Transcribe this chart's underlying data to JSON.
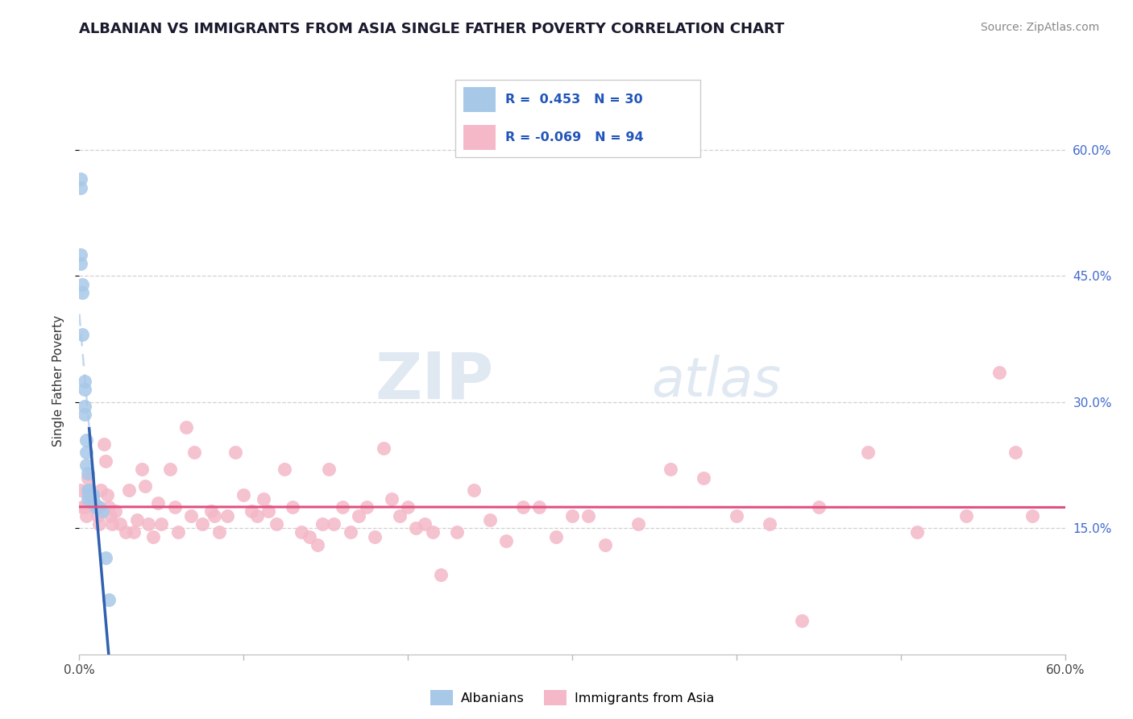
{
  "title": "ALBANIAN VS IMMIGRANTS FROM ASIA SINGLE FATHER POVERTY CORRELATION CHART",
  "source": "Source: ZipAtlas.com",
  "ylabel": "Single Father Poverty",
  "legend_label1": "Albanians",
  "legend_label2": "Immigrants from Asia",
  "color_blue": "#a8c8e8",
  "color_pink": "#f4b8c8",
  "line_blue": "#3060b0",
  "line_pink": "#e05080",
  "watermark_zip": "ZIP",
  "watermark_atlas": "atlas",
  "xlim": [
    0.0,
    0.6
  ],
  "ylim": [
    0.0,
    0.65
  ],
  "albanians_x": [
    0.001,
    0.001,
    0.001,
    0.001,
    0.002,
    0.002,
    0.002,
    0.003,
    0.003,
    0.003,
    0.003,
    0.004,
    0.004,
    0.004,
    0.005,
    0.005,
    0.005,
    0.006,
    0.006,
    0.007,
    0.007,
    0.008,
    0.008,
    0.009,
    0.01,
    0.011,
    0.012,
    0.014,
    0.016,
    0.018
  ],
  "albanians_y": [
    0.565,
    0.555,
    0.475,
    0.465,
    0.44,
    0.43,
    0.38,
    0.325,
    0.315,
    0.295,
    0.285,
    0.255,
    0.24,
    0.225,
    0.215,
    0.195,
    0.185,
    0.195,
    0.19,
    0.19,
    0.185,
    0.19,
    0.19,
    0.18,
    0.175,
    0.175,
    0.175,
    0.17,
    0.115,
    0.065
  ],
  "asia_x": [
    0.001,
    0.002,
    0.003,
    0.004,
    0.005,
    0.005,
    0.006,
    0.007,
    0.008,
    0.009,
    0.01,
    0.011,
    0.012,
    0.013,
    0.015,
    0.016,
    0.017,
    0.018,
    0.019,
    0.02,
    0.022,
    0.025,
    0.028,
    0.03,
    0.033,
    0.035,
    0.038,
    0.04,
    0.042,
    0.045,
    0.048,
    0.05,
    0.055,
    0.058,
    0.06,
    0.065,
    0.068,
    0.07,
    0.075,
    0.08,
    0.082,
    0.085,
    0.09,
    0.095,
    0.1,
    0.105,
    0.108,
    0.112,
    0.115,
    0.12,
    0.125,
    0.13,
    0.135,
    0.14,
    0.145,
    0.148,
    0.152,
    0.155,
    0.16,
    0.165,
    0.17,
    0.175,
    0.18,
    0.185,
    0.19,
    0.195,
    0.2,
    0.205,
    0.21,
    0.215,
    0.22,
    0.23,
    0.24,
    0.25,
    0.26,
    0.27,
    0.28,
    0.29,
    0.3,
    0.31,
    0.32,
    0.34,
    0.36,
    0.38,
    0.4,
    0.42,
    0.45,
    0.48,
    0.51,
    0.54,
    0.56,
    0.58,
    0.44,
    0.57
  ],
  "asia_y": [
    0.195,
    0.175,
    0.175,
    0.165,
    0.21,
    0.19,
    0.195,
    0.19,
    0.185,
    0.175,
    0.175,
    0.165,
    0.155,
    0.195,
    0.25,
    0.23,
    0.19,
    0.175,
    0.165,
    0.155,
    0.17,
    0.155,
    0.145,
    0.195,
    0.145,
    0.16,
    0.22,
    0.2,
    0.155,
    0.14,
    0.18,
    0.155,
    0.22,
    0.175,
    0.145,
    0.27,
    0.165,
    0.24,
    0.155,
    0.17,
    0.165,
    0.145,
    0.165,
    0.24,
    0.19,
    0.17,
    0.165,
    0.185,
    0.17,
    0.155,
    0.22,
    0.175,
    0.145,
    0.14,
    0.13,
    0.155,
    0.22,
    0.155,
    0.175,
    0.145,
    0.165,
    0.175,
    0.14,
    0.245,
    0.185,
    0.165,
    0.175,
    0.15,
    0.155,
    0.145,
    0.095,
    0.145,
    0.195,
    0.16,
    0.135,
    0.175,
    0.175,
    0.14,
    0.165,
    0.165,
    0.13,
    0.155,
    0.22,
    0.21,
    0.165,
    0.155,
    0.175,
    0.24,
    0.145,
    0.165,
    0.335,
    0.165,
    0.04,
    0.24
  ],
  "right_yticks": [
    "60.0%",
    "45.0%",
    "30.0%",
    "15.0%"
  ],
  "right_ytick_vals": [
    0.6,
    0.45,
    0.3,
    0.15
  ]
}
